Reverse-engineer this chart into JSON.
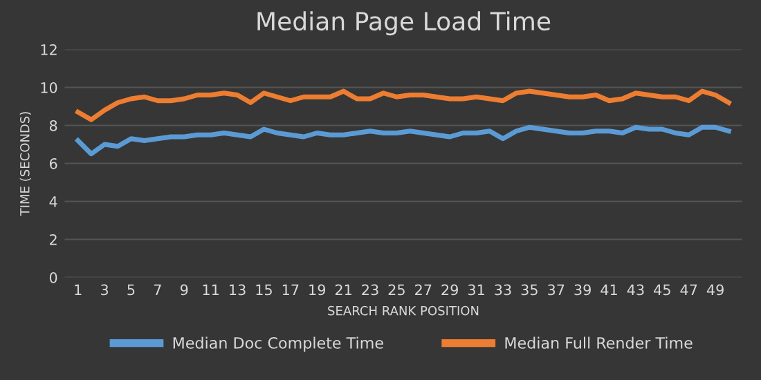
{
  "chart_data": {
    "type": "line",
    "title": "Median Page Load Time",
    "xlabel": "SEARCH RANK POSITION",
    "ylabel": "TIME (SECONDS)",
    "categories": [
      "1",
      null,
      "3",
      null,
      "5",
      null,
      "7",
      null,
      "9",
      null,
      "11",
      null,
      "13",
      null,
      "15",
      null,
      "17",
      null,
      "19",
      null,
      "21",
      null,
      "23",
      null,
      "25",
      null,
      "27",
      null,
      "29",
      null,
      "31",
      null,
      "33",
      null,
      "35",
      null,
      "37",
      null,
      "39",
      null,
      "41",
      null,
      "43",
      null,
      "45",
      null,
      "47",
      null,
      "49",
      null
    ],
    "series": [
      {
        "name": "Median Doc Complete Time",
        "color": "#5b9bd5",
        "values": [
          7.2,
          6.5,
          7.0,
          6.9,
          7.3,
          7.2,
          7.3,
          7.4,
          7.4,
          7.5,
          7.5,
          7.6,
          7.5,
          7.4,
          7.8,
          7.6,
          7.5,
          7.4,
          7.6,
          7.5,
          7.5,
          7.6,
          7.7,
          7.6,
          7.6,
          7.7,
          7.6,
          7.5,
          7.4,
          7.6,
          7.6,
          7.7,
          7.3,
          7.7,
          7.9,
          7.8,
          7.7,
          7.6,
          7.6,
          7.7,
          7.7,
          7.6,
          7.9,
          7.8,
          7.8,
          7.6,
          7.5,
          7.9,
          7.9,
          7.7
        ]
      },
      {
        "name": "Median Full Render Time",
        "color": "#ed7d31",
        "values": [
          8.7,
          8.3,
          8.8,
          9.2,
          9.4,
          9.5,
          9.3,
          9.3,
          9.4,
          9.6,
          9.6,
          9.7,
          9.6,
          9.2,
          9.7,
          9.5,
          9.3,
          9.5,
          9.5,
          9.5,
          9.8,
          9.4,
          9.4,
          9.7,
          9.5,
          9.6,
          9.6,
          9.5,
          9.4,
          9.4,
          9.5,
          9.4,
          9.3,
          9.7,
          9.8,
          9.7,
          9.6,
          9.5,
          9.5,
          9.6,
          9.3,
          9.4,
          9.7,
          9.6,
          9.5,
          9.5,
          9.3,
          9.8,
          9.6,
          9.2
        ]
      }
    ],
    "ylim": [
      0,
      12
    ],
    "yticks": [
      0,
      2,
      4,
      6,
      8,
      10,
      12
    ],
    "grid": "y",
    "legend": "bottom",
    "marker": "none",
    "line_style": "solid"
  }
}
